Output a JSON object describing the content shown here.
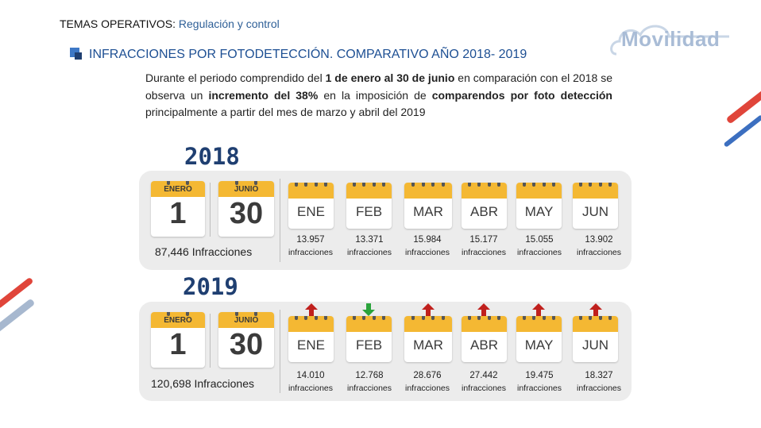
{
  "header": {
    "prefix": "TEMAS OPERATIVOS:",
    "subtitle": "Regulación y control",
    "logo_text": "Movilidad"
  },
  "section_title": "INFRACCIONES POR FOTODETECCIÓN. COMPARATIVO AÑO 2018- 2019",
  "paragraph": {
    "p1": "Durante el periodo comprendido del ",
    "b1": "1 de enero al 30 de junio",
    "p2": " en comparación con el 2018 se observa un ",
    "b2": "incremento del 38%",
    "p3": " en la imposición de ",
    "b3": "comparendos por foto detección",
    "p4": " principalmente a partir del mes de marzo y abril del 2019"
  },
  "y2018": {
    "year": "2018",
    "start_month": "ENERO",
    "start_day": "1",
    "end_month": "JUNIO",
    "end_day": "30",
    "total": "87,446 Infracciones",
    "months": [
      {
        "name": "ENE",
        "value": "13.957",
        "label": "infracciones"
      },
      {
        "name": "FEB",
        "value": "13.371",
        "label": "infracciones"
      },
      {
        "name": "MAR",
        "value": "15.984",
        "label": "infracciones"
      },
      {
        "name": "ABR",
        "value": "15.177",
        "label": "infracciones"
      },
      {
        "name": "MAY",
        "value": "15.055",
        "label": "infracciones"
      },
      {
        "name": "JUN",
        "value": "13.902",
        "label": "infracciones"
      }
    ]
  },
  "y2019": {
    "year": "2019",
    "start_month": "ENERO",
    "start_day": "1",
    "end_month": "JUNIO",
    "end_day": "30",
    "total": "120,698 Infracciones",
    "months": [
      {
        "name": "ENE",
        "value": "14.010",
        "label": "infracciones",
        "trend": "up"
      },
      {
        "name": "FEB",
        "value": "12.768",
        "label": "infracciones",
        "trend": "down"
      },
      {
        "name": "MAR",
        "value": "28.676",
        "label": "infracciones",
        "trend": "up"
      },
      {
        "name": "ABR",
        "value": "27.442",
        "label": "infracciones",
        "trend": "up"
      },
      {
        "name": "MAY",
        "value": "19.475",
        "label": "infracciones",
        "trend": "up"
      },
      {
        "name": "JUN",
        "value": "18.327",
        "label": "infracciones",
        "trend": "up"
      }
    ]
  },
  "colors": {
    "up_arrow": "#c0201d",
    "down_arrow": "#2aa33b",
    "calendar_header": "#f4b833",
    "title_blue": "#1d4f93"
  },
  "icons": {
    "calendar": "calendar-icon",
    "up": "arrow-up-icon",
    "down": "arrow-down-icon"
  }
}
